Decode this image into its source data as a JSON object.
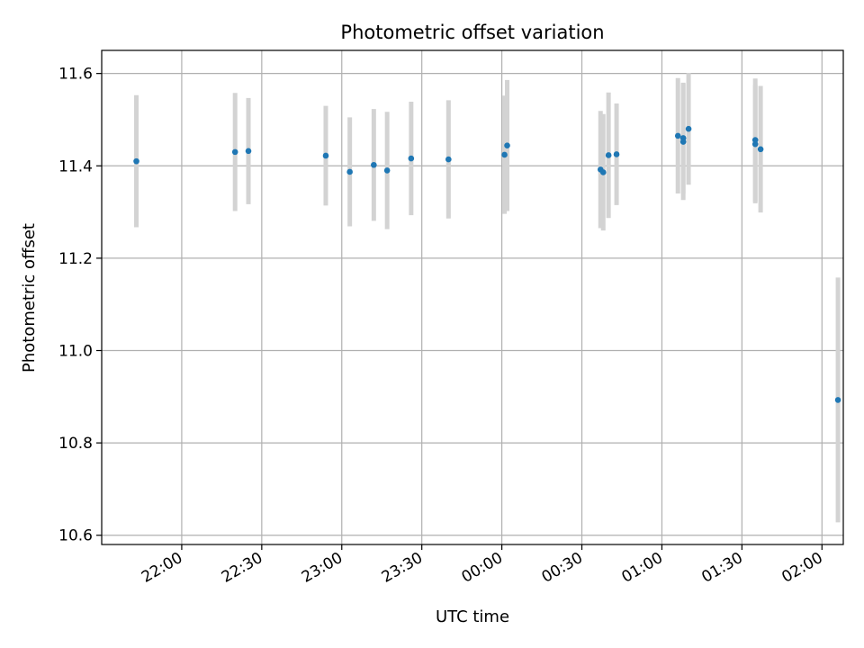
{
  "chart_data": {
    "type": "scatter",
    "title": "Photometric offset variation",
    "xlabel": "UTC time",
    "ylabel": "Photometric offset",
    "x_unit": "time",
    "xlim": [
      "21:30",
      "02:08"
    ],
    "ylim": [
      10.58,
      11.65
    ],
    "x_ticks": [
      "22:00",
      "22:30",
      "23:00",
      "23:30",
      "00:00",
      "00:30",
      "01:00",
      "01:30",
      "02:00"
    ],
    "y_ticks": [
      "10.6",
      "10.8",
      "11.0",
      "11.2",
      "11.4",
      "11.6"
    ],
    "grid": true,
    "colors": {
      "point": "#1f77b4",
      "errorbar": "#d3d3d3",
      "grid": "#b0b0b0"
    },
    "series": [
      {
        "points": [
          {
            "x": "21:43",
            "y": 11.41,
            "err": 0.143
          },
          {
            "x": "22:20",
            "y": 11.43,
            "err": 0.128
          },
          {
            "x": "22:25",
            "y": 11.432,
            "err": 0.115
          },
          {
            "x": "22:54",
            "y": 11.422,
            "err": 0.108
          },
          {
            "x": "23:03",
            "y": 11.387,
            "err": 0.118
          },
          {
            "x": "23:12",
            "y": 11.402,
            "err": 0.121
          },
          {
            "x": "23:17",
            "y": 11.39,
            "err": 0.127
          },
          {
            "x": "23:26",
            "y": 11.416,
            "err": 0.123
          },
          {
            "x": "23:40",
            "y": 11.414,
            "err": 0.128
          },
          {
            "x": "00:01",
            "y": 11.424,
            "err": 0.128
          },
          {
            "x": "00:02",
            "y": 11.444,
            "err": 0.142
          },
          {
            "x": "00:37",
            "y": 11.392,
            "err": 0.127
          },
          {
            "x": "00:38",
            "y": 11.386,
            "err": 0.126
          },
          {
            "x": "00:40",
            "y": 11.423,
            "err": 0.136
          },
          {
            "x": "00:43",
            "y": 11.425,
            "err": 0.11
          },
          {
            "x": "01:06",
            "y": 11.465,
            "err": 0.125
          },
          {
            "x": "01:08",
            "y": 11.46,
            "err": 0.12
          },
          {
            "x": "01:08",
            "y": 11.452,
            "err": 0.126
          },
          {
            "x": "01:10",
            "y": 11.48,
            "err": 0.121
          },
          {
            "x": "01:35",
            "y": 11.447,
            "err": 0.128
          },
          {
            "x": "01:35",
            "y": 11.456,
            "err": 0.133
          },
          {
            "x": "01:37",
            "y": 11.436,
            "err": 0.137
          },
          {
            "x": "02:06",
            "y": 10.893,
            "err": 0.265
          }
        ]
      }
    ]
  }
}
